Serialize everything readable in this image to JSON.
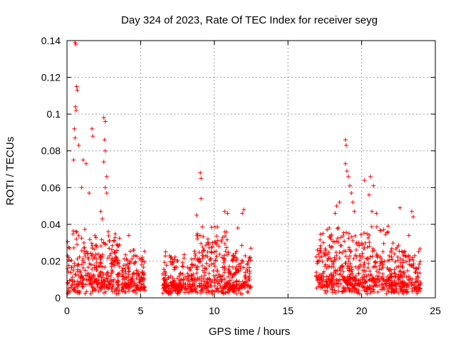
{
  "chart_data": {
    "type": "scatter",
    "title": "Day 324 of 2023, Rate Of TEC Index for receiver seyg",
    "xlabel": "GPS time / hours",
    "ylabel": "ROTI / TECUs",
    "xlim": [
      0,
      25
    ],
    "ylim": [
      0,
      0.14
    ],
    "xticks": [
      0,
      5,
      10,
      15,
      20,
      25
    ],
    "yticks": [
      0,
      0.02,
      0.04,
      0.06,
      0.08,
      0.1,
      0.12,
      0.14
    ],
    "xtick_labels": [
      "0",
      "5",
      "10",
      "15",
      "20",
      "25"
    ],
    "ytick_labels": [
      "0",
      "0.02",
      "0.04",
      "0.06",
      "0.08",
      "0.1",
      "0.12",
      "0.14"
    ],
    "grid": true,
    "marker": "+",
    "color": "#ff0000",
    "series": [
      {
        "name": "ROTI",
        "segments": [
          {
            "start": 0.0,
            "end": 3.6,
            "base": 0.008,
            "spread": 0.028
          },
          {
            "start": 3.7,
            "end": 5.3,
            "base": 0.006,
            "spread": 0.02
          },
          {
            "start": 6.5,
            "end": 8.5,
            "base": 0.005,
            "spread": 0.018
          },
          {
            "start": 8.5,
            "end": 10.9,
            "base": 0.008,
            "spread": 0.03
          },
          {
            "start": 10.9,
            "end": 12.5,
            "base": 0.006,
            "spread": 0.022
          },
          {
            "start": 16.9,
            "end": 22.0,
            "base": 0.008,
            "spread": 0.03
          },
          {
            "start": 22.0,
            "end": 24.0,
            "base": 0.006,
            "spread": 0.022
          }
        ],
        "peaks": [
          {
            "x": 0.55,
            "y": 0.139
          },
          {
            "x": 0.6,
            "y": 0.138
          },
          {
            "x": 0.65,
            "y": 0.115
          },
          {
            "x": 0.7,
            "y": 0.113
          },
          {
            "x": 0.58,
            "y": 0.104
          },
          {
            "x": 0.62,
            "y": 0.102
          },
          {
            "x": 0.5,
            "y": 0.092
          },
          {
            "x": 0.55,
            "y": 0.087
          },
          {
            "x": 0.45,
            "y": 0.075
          },
          {
            "x": 0.8,
            "y": 0.083
          },
          {
            "x": 1.1,
            "y": 0.075
          },
          {
            "x": 1.3,
            "y": 0.073
          },
          {
            "x": 1.7,
            "y": 0.092
          },
          {
            "x": 1.75,
            "y": 0.088
          },
          {
            "x": 2.5,
            "y": 0.098
          },
          {
            "x": 2.6,
            "y": 0.096
          },
          {
            "x": 2.55,
            "y": 0.086
          },
          {
            "x": 2.6,
            "y": 0.08
          },
          {
            "x": 2.5,
            "y": 0.074
          },
          {
            "x": 2.7,
            "y": 0.066
          },
          {
            "x": 2.6,
            "y": 0.06
          },
          {
            "x": 2.7,
            "y": 0.057
          },
          {
            "x": 2.4,
            "y": 0.043
          },
          {
            "x": 2.3,
            "y": 0.047
          },
          {
            "x": 2.8,
            "y": 0.036
          },
          {
            "x": 2.9,
            "y": 0.031
          },
          {
            "x": 1.5,
            "y": 0.057
          },
          {
            "x": 1.0,
            "y": 0.06
          },
          {
            "x": 4.2,
            "y": 0.034
          },
          {
            "x": 4.5,
            "y": 0.026
          },
          {
            "x": 6.7,
            "y": 0.025
          },
          {
            "x": 9.05,
            "y": 0.068
          },
          {
            "x": 9.1,
            "y": 0.065
          },
          {
            "x": 9.1,
            "y": 0.054
          },
          {
            "x": 8.8,
            "y": 0.045
          },
          {
            "x": 10.7,
            "y": 0.047
          },
          {
            "x": 10.9,
            "y": 0.046
          },
          {
            "x": 12.0,
            "y": 0.048
          },
          {
            "x": 11.9,
            "y": 0.046
          },
          {
            "x": 11.6,
            "y": 0.038
          },
          {
            "x": 18.9,
            "y": 0.086
          },
          {
            "x": 18.95,
            "y": 0.083
          },
          {
            "x": 18.9,
            "y": 0.073
          },
          {
            "x": 19.0,
            "y": 0.069
          },
          {
            "x": 19.1,
            "y": 0.066
          },
          {
            "x": 19.2,
            "y": 0.061
          },
          {
            "x": 19.3,
            "y": 0.057
          },
          {
            "x": 19.4,
            "y": 0.052
          },
          {
            "x": 18.5,
            "y": 0.052
          },
          {
            "x": 18.3,
            "y": 0.05
          },
          {
            "x": 18.2,
            "y": 0.046
          },
          {
            "x": 19.5,
            "y": 0.047
          },
          {
            "x": 20.2,
            "y": 0.064
          },
          {
            "x": 20.6,
            "y": 0.066
          },
          {
            "x": 20.8,
            "y": 0.061
          },
          {
            "x": 20.5,
            "y": 0.056
          },
          {
            "x": 20.7,
            "y": 0.047
          },
          {
            "x": 21.0,
            "y": 0.046
          },
          {
            "x": 21.8,
            "y": 0.039
          },
          {
            "x": 22.6,
            "y": 0.049
          },
          {
            "x": 23.4,
            "y": 0.047
          },
          {
            "x": 23.5,
            "y": 0.044
          },
          {
            "x": 23.2,
            "y": 0.034
          },
          {
            "x": 17.4,
            "y": 0.03
          },
          {
            "x": 17.0,
            "y": 0.026
          },
          {
            "x": 17.8,
            "y": 0.038
          }
        ]
      }
    ]
  }
}
